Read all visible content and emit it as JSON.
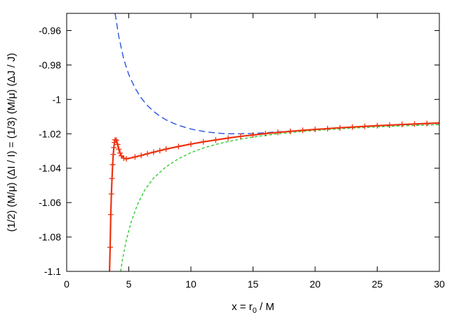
{
  "chart_data": {
    "type": "line",
    "xlabel_parts": {
      "pre": "x = r",
      "sub": "0",
      "post": " / M"
    },
    "ylabel": "(1/2) (M/μ) (ΔI / I) = (1/3) (M/μ) (ΔJ / J)",
    "xlim": [
      0,
      30
    ],
    "ylim": [
      -1.1,
      -0.95
    ],
    "xticks": [
      0,
      5,
      10,
      15,
      20,
      25,
      30
    ],
    "xtick_labels": [
      "0",
      "5",
      "10",
      "15",
      "20",
      "25",
      "30"
    ],
    "yticks": [
      -1.1,
      -1.08,
      -1.06,
      -1.04,
      -1.02,
      -1.0,
      -0.98,
      -0.96
    ],
    "ytick_labels": [
      "-1.1",
      "-1.08",
      "-1.06",
      "-1.04",
      "-1.02",
      "-1",
      "-0.98",
      "-0.96"
    ],
    "grid": false,
    "legend": "none",
    "series": [
      {
        "style": "dashed",
        "color": "#2a52e0",
        "x": [
          3.9,
          4.2,
          4.6,
          5.0,
          5.5,
          6.0,
          6.5,
          7.0,
          7.5,
          8.0,
          8.5,
          9.0,
          9.5,
          10.0,
          10.5,
          11.0,
          11.5,
          12.0,
          12.5,
          13.0,
          14.0,
          15.0,
          16.0,
          17.0,
          18.0,
          20.0,
          22.0,
          24.0,
          26.0,
          28.0,
          30.0
        ],
        "y": [
          -0.95,
          -0.9637,
          -0.9768,
          -0.9856,
          -0.9934,
          -0.9992,
          -1.0036,
          -1.007,
          -1.0097,
          -1.0119,
          -1.0136,
          -1.0151,
          -1.0162,
          -1.0172,
          -1.018,
          -1.0186,
          -1.0191,
          -1.0195,
          -1.0198,
          -1.02,
          -1.02,
          -1.0198,
          -1.0194,
          -1.0189,
          -1.0184,
          -1.0175,
          -1.0166,
          -1.0158,
          -1.0151,
          -1.0145,
          -1.014
        ]
      },
      {
        "style": "dotted",
        "color": "#33cc33",
        "x": [
          4.35,
          4.5,
          4.8,
          5.2,
          5.7,
          6.3,
          7.0,
          8.0,
          9.0,
          10.0,
          11.0,
          12.0,
          13.0,
          14.0,
          15.0,
          17.0,
          19.0,
          21.0,
          23.0,
          25.0,
          27.0,
          30.0
        ],
        "y": [
          -1.1,
          -1.0928,
          -1.0818,
          -1.0711,
          -1.0611,
          -1.0525,
          -1.0457,
          -1.0392,
          -1.0345,
          -1.031,
          -1.0283,
          -1.0262,
          -1.0245,
          -1.0231,
          -1.0219,
          -1.02,
          -1.0186,
          -1.0176,
          -1.0167,
          -1.016,
          -1.0154,
          -1.0147
        ]
      },
      {
        "style": "solid",
        "color": "#ee3311",
        "marker": "+",
        "x": [
          3.45,
          3.5,
          3.55,
          3.6,
          3.65,
          3.7,
          3.75,
          3.8,
          3.85,
          3.9,
          3.95,
          4.0,
          4.1,
          4.2,
          4.3,
          4.4,
          4.6,
          4.8,
          5.0,
          5.5,
          6.0,
          6.5,
          7.0,
          7.5,
          8.0,
          9.0,
          10.0,
          11.0,
          12.0,
          13.0,
          14.0,
          15.0,
          16.0,
          17.0,
          18.0,
          19.0,
          20.0,
          21.0,
          22.0,
          23.0,
          24.0,
          25.0,
          26.0,
          27.0,
          28.0,
          29.0,
          30.0
        ],
        "y": [
          -1.1,
          -1.086,
          -1.067,
          -1.055,
          -1.046,
          -1.038,
          -1.032,
          -1.028,
          -1.025,
          -1.0235,
          -1.0232,
          -1.0238,
          -1.0262,
          -1.029,
          -1.0312,
          -1.0328,
          -1.0342,
          -1.0346,
          -1.0343,
          -1.0335,
          -1.0326,
          -1.0316,
          -1.0307,
          -1.0298,
          -1.0289,
          -1.0274,
          -1.026,
          -1.0247,
          -1.0236,
          -1.0225,
          -1.0215,
          -1.0207,
          -1.0199,
          -1.0192,
          -1.0186,
          -1.018,
          -1.0175,
          -1.017,
          -1.0165,
          -1.0161,
          -1.0157,
          -1.0153,
          -1.015,
          -1.0146,
          -1.0143,
          -1.014,
          -1.0137
        ],
        "marker_x": [
          3.5,
          3.55,
          3.6,
          3.65,
          3.7,
          3.75,
          3.8,
          3.85,
          3.9,
          4.0,
          4.1,
          4.2,
          4.3,
          4.4,
          4.6,
          4.8,
          5.5,
          6.0,
          6.5,
          7.0,
          7.5,
          8.0,
          9.0,
          10.0,
          11.0,
          12.0,
          13.0,
          14.0,
          15.0,
          16.0,
          17.0,
          18.0,
          19.0,
          20.0,
          21.0,
          22.0,
          23.0,
          24.0,
          25.0,
          26.0,
          27.0,
          28.0,
          29.0,
          30.0
        ]
      }
    ]
  }
}
